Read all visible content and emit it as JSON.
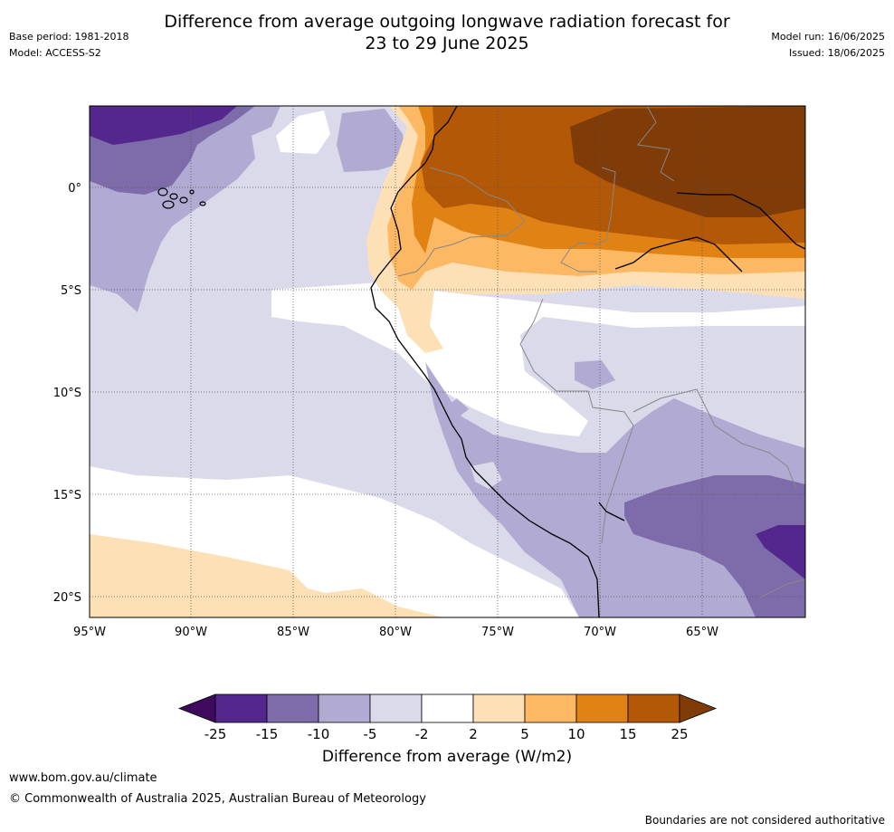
{
  "title": {
    "line1": "Difference from average outgoing longwave radiation forecast for",
    "line2": "23 to 29 June 2025"
  },
  "meta": {
    "base_period": "Base period: 1981-2018",
    "model": "Model: ACCESS-S2",
    "model_run": "Model run: 16/06/2025",
    "issued": "Issued: 18/06/2025"
  },
  "map": {
    "lon_ticks": [
      "95°W",
      "90°W",
      "85°W",
      "80°W",
      "75°W",
      "70°W",
      "65°W"
    ],
    "lat_ticks": [
      "0°",
      "5°S",
      "10°S",
      "15°S",
      "20°S"
    ]
  },
  "colorbar": {
    "title": "Difference from average (W/m2)",
    "tick_labels": [
      "-25",
      "-15",
      "-10",
      "-5",
      "-2",
      "2",
      "5",
      "10",
      "15",
      "25"
    ],
    "colors": [
      "#3f0a5e",
      "#54278f",
      "#7e6ba9",
      "#b1aad2",
      "#dadaeb",
      "#ffffff",
      "#fee0b6",
      "#fdb863",
      "#e08214",
      "#b35806",
      "#7f3b08"
    ]
  },
  "footer": {
    "url": "www.bom.gov.au/climate",
    "copyright": "© Commonwealth of Australia 2025, Australian Bureau of Meteorology",
    "note": "Boundaries are not considered authoritative"
  }
}
